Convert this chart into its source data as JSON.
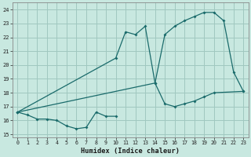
{
  "xlabel": "Humidex (Indice chaleur)",
  "xlim": [
    -0.5,
    23.5
  ],
  "ylim": [
    14.8,
    24.5
  ],
  "yticks": [
    15,
    16,
    17,
    18,
    19,
    20,
    21,
    22,
    23,
    24
  ],
  "xticks": [
    0,
    1,
    2,
    3,
    4,
    5,
    6,
    7,
    8,
    9,
    10,
    11,
    12,
    13,
    14,
    15,
    16,
    17,
    18,
    19,
    20,
    21,
    22,
    23
  ],
  "bg_color": "#c8e8e0",
  "grid_color": "#a0c8c0",
  "line_color": "#1a6b6b",
  "line1_x": [
    0,
    1,
    2,
    3,
    4,
    5,
    6,
    7,
    8,
    9,
    10
  ],
  "line1_y": [
    16.6,
    16.4,
    16.1,
    16.1,
    16.0,
    15.6,
    15.4,
    15.5,
    16.6,
    16.3,
    16.3
  ],
  "line2_x": [
    0,
    10,
    11,
    12,
    13,
    14,
    15,
    16,
    17,
    18,
    19,
    20,
    23
  ],
  "line2_y": [
    16.6,
    20.5,
    22.4,
    22.2,
    22.8,
    18.7,
    17.2,
    17.0,
    17.2,
    17.4,
    17.7,
    18.0,
    18.1
  ],
  "line3_x": [
    0,
    14,
    15,
    16,
    17,
    18,
    19,
    20,
    21,
    22,
    23
  ],
  "line3_y": [
    16.6,
    18.7,
    22.2,
    22.8,
    23.2,
    23.5,
    23.8,
    23.8,
    23.2,
    19.5,
    18.1
  ]
}
